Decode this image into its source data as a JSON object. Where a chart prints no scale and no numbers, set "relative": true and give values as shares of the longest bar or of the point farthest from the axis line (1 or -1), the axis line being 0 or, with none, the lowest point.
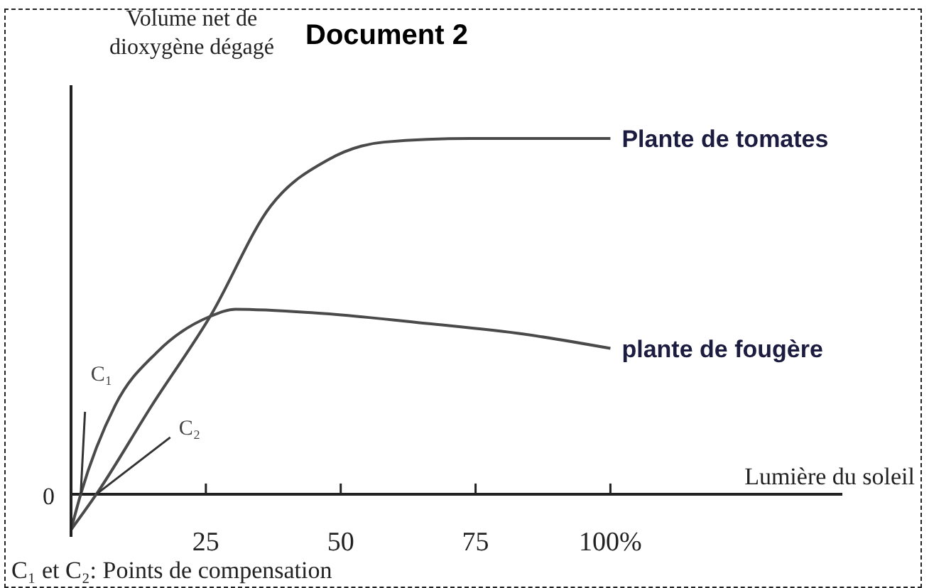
{
  "chart_data": {
    "type": "line",
    "title": "Document 2",
    "ylabel": "Volume net de dioxygène dégagé",
    "xlabel": "Lumière du soleil",
    "relative": true,
    "xlim": [
      0,
      143
    ],
    "xticks": [
      25,
      50,
      75,
      {
        "value": 100,
        "label": "100%"
      }
    ],
    "marker": "none",
    "line_style": "solid",
    "grid": false,
    "legend": false,
    "series": [
      {
        "name": "Plante de tomates",
        "color": "#4a4a4a",
        "x": [
          0,
          4.7,
          15,
          25.8,
          37,
          47.6,
          58,
          74,
          100
        ],
        "values": [
          -0.1,
          0,
          0.25,
          0.5,
          0.81,
          0.94,
          0.99,
          1,
          1
        ]
      },
      {
        "name": "plante de fougère",
        "color": "#4a4a4a",
        "x": [
          0,
          1.8,
          8.2,
          16,
          25.8,
          30.5,
          45,
          66,
          84,
          100
        ],
        "values": [
          -0.1,
          0,
          0.25,
          0.4,
          0.5,
          0.52,
          0.51,
          0.48,
          0.45,
          0.41
        ]
      }
    ],
    "annotations": [
      "0",
      {
        "text": "C₁",
        "x": 1.8,
        "y": 0
      },
      {
        "text": "C₂",
        "x": 4.7,
        "y": 0
      },
      "C₁ et C₂: Points de compensation"
    ]
  }
}
